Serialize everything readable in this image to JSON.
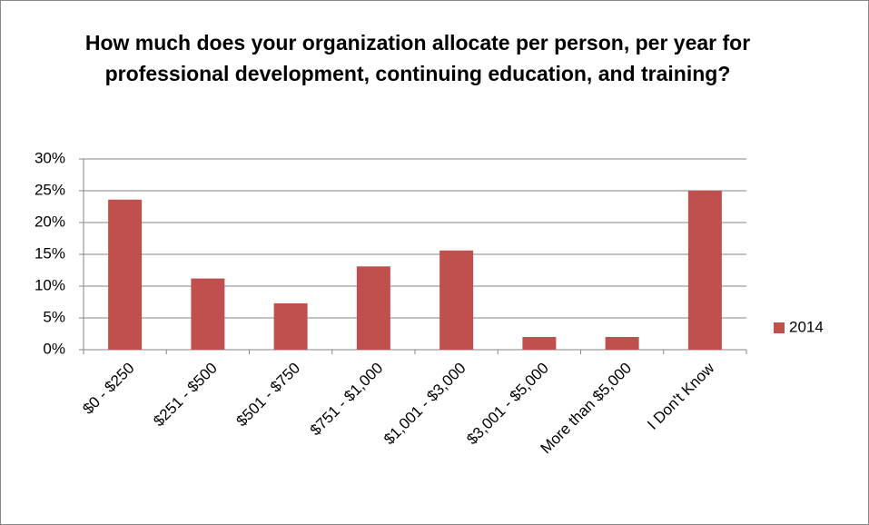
{
  "chart_data": {
    "type": "bar",
    "title": "How much does your organization allocate per person, per year for professional development, continuing education, and training?",
    "categories": [
      "$0 - $250",
      "$251 - $500",
      "$501 - $750",
      "$751 - $1,000",
      "$1,001 - $3,000",
      "$3,001 - $5,000",
      "More than $5,000",
      "I Don't Know"
    ],
    "series": [
      {
        "name": "2014",
        "color": "#c0504d",
        "values": [
          23.6,
          11.2,
          7.3,
          13.1,
          15.6,
          2.0,
          2.0,
          25.0
        ]
      }
    ],
    "ylim": [
      0,
      30
    ],
    "yticks": [
      {
        "value": 0,
        "label": "0%"
      },
      {
        "value": 5,
        "label": "5%"
      },
      {
        "value": 10,
        "label": "10%"
      },
      {
        "value": 15,
        "label": "15%"
      },
      {
        "value": 20,
        "label": "20%"
      },
      {
        "value": 25,
        "label": "25%"
      },
      {
        "value": 30,
        "label": "30%"
      }
    ],
    "grid": true,
    "legend": "right"
  }
}
